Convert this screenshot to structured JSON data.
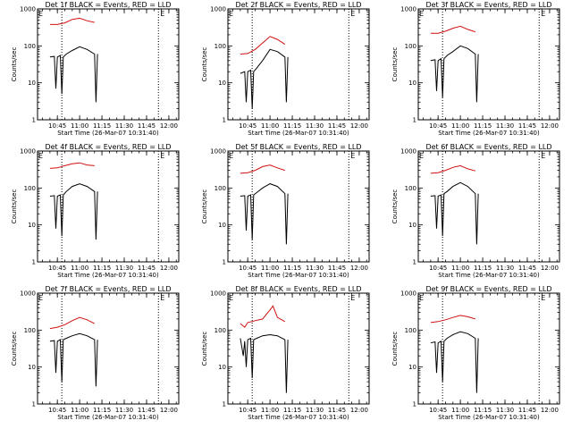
{
  "colors": {
    "events": "#000000",
    "lld": "#d01010",
    "background": "#ffffff"
  },
  "chart_data": [
    {
      "type": "line",
      "title": "Det 1f BLACK = Events, RED = LLD",
      "ylabel": "Counts/sec",
      "xlabel": "Start Time (26-Mar-07 10:31:40)",
      "y_scale": "log",
      "ylim": [
        1,
        1000
      ],
      "xlim": [
        "10:31:40",
        "12:06:40"
      ],
      "x_ticks": [
        "10:45",
        "11:00",
        "11:15",
        "11:30",
        "11:45",
        "12:00"
      ],
      "y_ticks": [
        "1",
        "10",
        "100",
        "1000"
      ],
      "markers": [
        {
          "label": "E",
          "time": "10:31:40"
        },
        {
          "label": "E",
          "time": "11:53"
        }
      ],
      "vlines": [
        "10:48",
        "11:53"
      ],
      "grid": false,
      "legend": "none",
      "series": [
        {
          "color": "#d01010",
          "x": [
            "10:40",
            "10:45",
            "10:50",
            "10:55",
            "11:00",
            "11:05",
            "11:10"
          ],
          "y": [
            380,
            380,
            420,
            520,
            560,
            480,
            430
          ]
        },
        {
          "color": "#000000",
          "x": [
            "10:40",
            "10:43",
            "10:44",
            "10:45",
            "10:47",
            "10:48",
            "10:49",
            "10:51",
            "10:55",
            "11:00",
            "11:05",
            "11:10",
            "11:11",
            "11:12"
          ],
          "y": [
            50,
            52,
            7,
            50,
            55,
            5,
            50,
            60,
            75,
            95,
            80,
            60,
            3,
            60
          ]
        }
      ]
    },
    {
      "type": "line",
      "title": "Det 2f BLACK = Events, RED = LLD",
      "ylabel": "Counts/sec",
      "xlabel": "Start Time (26-Mar-07 10:31:40)",
      "y_scale": "log",
      "ylim": [
        1,
        1000
      ],
      "xlim": [
        "10:31:40",
        "12:06:40"
      ],
      "x_ticks": [
        "10:45",
        "11:00",
        "11:15",
        "11:30",
        "11:45",
        "12:00"
      ],
      "y_ticks": [
        "1",
        "10",
        "100",
        "1000"
      ],
      "markers": [
        {
          "label": "E",
          "time": "10:31:40"
        },
        {
          "label": "E",
          "time": "11:53"
        }
      ],
      "vlines": [
        "10:48",
        "11:53"
      ],
      "grid": false,
      "legend": "none",
      "series": [
        {
          "color": "#d01010",
          "x": [
            "10:40",
            "10:45",
            "10:50",
            "10:55",
            "11:00",
            "11:05",
            "11:10"
          ],
          "y": [
            60,
            62,
            80,
            120,
            180,
            150,
            110
          ]
        },
        {
          "color": "#000000",
          "x": [
            "10:40",
            "10:43",
            "10:44",
            "10:45",
            "10:47",
            "10:48",
            "10:49",
            "10:51",
            "10:55",
            "11:00",
            "11:05",
            "11:10",
            "11:11",
            "11:12"
          ],
          "y": [
            18,
            20,
            3,
            20,
            22,
            2,
            20,
            25,
            40,
            80,
            70,
            50,
            3,
            50
          ]
        }
      ]
    },
    {
      "type": "line",
      "title": "Det 3f BLACK = Events, RED = LLD",
      "ylabel": "Counts/sec",
      "xlabel": "Start Time (26-Mar-07 10:31:40)",
      "y_scale": "log",
      "ylim": [
        1,
        1000
      ],
      "xlim": [
        "10:31:40",
        "12:06:40"
      ],
      "x_ticks": [
        "10:45",
        "11:00",
        "11:15",
        "11:30",
        "11:45",
        "12:00"
      ],
      "y_ticks": [
        "1",
        "10",
        "100",
        "1000"
      ],
      "markers": [
        {
          "label": "E",
          "time": "10:31:40"
        },
        {
          "label": "E",
          "time": "11:53"
        }
      ],
      "vlines": [
        "10:48",
        "11:53"
      ],
      "grid": false,
      "legend": "none",
      "series": [
        {
          "color": "#d01010",
          "x": [
            "10:40",
            "10:45",
            "10:50",
            "10:55",
            "11:00",
            "11:05",
            "11:10"
          ],
          "y": [
            220,
            220,
            250,
            300,
            340,
            280,
            240
          ]
        },
        {
          "color": "#000000",
          "x": [
            "10:40",
            "10:43",
            "10:44",
            "10:45",
            "10:47",
            "10:48",
            "10:49",
            "10:51",
            "10:55",
            "11:00",
            "11:05",
            "11:10",
            "11:11",
            "11:12"
          ],
          "y": [
            40,
            42,
            6,
            40,
            45,
            4,
            45,
            55,
            70,
            100,
            85,
            60,
            3,
            60
          ]
        }
      ]
    },
    {
      "type": "line",
      "title": "Det 4f BLACK = Events, RED = LLD",
      "ylabel": "Counts/sec",
      "xlabel": "Start Time (26-Mar-07 10:31:40)",
      "y_scale": "log",
      "ylim": [
        1,
        1000
      ],
      "xlim": [
        "10:31:40",
        "12:06:40"
      ],
      "x_ticks": [
        "10:45",
        "11:00",
        "11:15",
        "11:30",
        "11:45",
        "12:00"
      ],
      "y_ticks": [
        "1",
        "10",
        "100",
        "1000"
      ],
      "markers": [
        {
          "label": "E",
          "time": "10:31:40"
        },
        {
          "label": "E",
          "time": "11:53"
        }
      ],
      "vlines": [
        "10:48",
        "11:53"
      ],
      "grid": false,
      "legend": "none",
      "series": [
        {
          "color": "#d01010",
          "x": [
            "10:40",
            "10:45",
            "10:50",
            "10:55",
            "11:00",
            "11:05",
            "11:10"
          ],
          "y": [
            340,
            350,
            400,
            450,
            480,
            420,
            400
          ]
        },
        {
          "color": "#000000",
          "x": [
            "10:40",
            "10:43",
            "10:44",
            "10:45",
            "10:47",
            "10:48",
            "10:49",
            "10:51",
            "10:55",
            "11:00",
            "11:05",
            "11:10",
            "11:11",
            "11:12"
          ],
          "y": [
            60,
            62,
            8,
            60,
            65,
            5,
            65,
            80,
            110,
            130,
            110,
            80,
            4,
            80
          ]
        }
      ]
    },
    {
      "type": "line",
      "title": "Det 5f BLACK = Events, RED = LLD",
      "ylabel": "Counts/sec",
      "xlabel": "Start Time (26-Mar-07 10:31:40)",
      "y_scale": "log",
      "ylim": [
        1,
        1000
      ],
      "xlim": [
        "10:31:40",
        "12:06:40"
      ],
      "x_ticks": [
        "10:45",
        "11:00",
        "11:15",
        "11:30",
        "11:45",
        "12:00"
      ],
      "y_ticks": [
        "1",
        "10",
        "100",
        "1000"
      ],
      "markers": [
        {
          "label": "E",
          "time": "10:31:40"
        },
        {
          "label": "E",
          "time": "11:53"
        }
      ],
      "vlines": [
        "10:48",
        "11:53"
      ],
      "grid": false,
      "legend": "none",
      "series": [
        {
          "color": "#d01010",
          "x": [
            "10:40",
            "10:45",
            "10:50",
            "10:55",
            "11:00",
            "11:05",
            "11:10"
          ],
          "y": [
            250,
            260,
            300,
            380,
            420,
            350,
            300
          ]
        },
        {
          "color": "#000000",
          "x": [
            "10:40",
            "10:43",
            "10:44",
            "10:45",
            "10:47",
            "10:48",
            "10:49",
            "10:51",
            "10:55",
            "11:00",
            "11:05",
            "11:10",
            "11:11",
            "11:12"
          ],
          "y": [
            60,
            62,
            7,
            60,
            65,
            4,
            65,
            75,
            100,
            130,
            110,
            70,
            3,
            70
          ]
        }
      ]
    },
    {
      "type": "line",
      "title": "Det 6f BLACK = Events, RED = LLD",
      "ylabel": "Counts/sec",
      "xlabel": "Start Time (26-Mar-07 10:31:40)",
      "y_scale": "log",
      "ylim": [
        1,
        1000
      ],
      "xlim": [
        "10:31:40",
        "12:06:40"
      ],
      "x_ticks": [
        "10:45",
        "11:00",
        "11:15",
        "11:30",
        "11:45",
        "12:00"
      ],
      "y_ticks": [
        "1",
        "10",
        "100",
        "1000"
      ],
      "markers": [
        {
          "label": "E",
          "time": "10:31:40"
        },
        {
          "label": "E",
          "time": "11:53"
        }
      ],
      "vlines": [
        "10:48",
        "11:53"
      ],
      "grid": false,
      "legend": "none",
      "series": [
        {
          "color": "#d01010",
          "x": [
            "10:40",
            "10:45",
            "10:50",
            "10:55",
            "11:00",
            "11:05",
            "11:10"
          ],
          "y": [
            250,
            260,
            300,
            360,
            400,
            330,
            290
          ]
        },
        {
          "color": "#000000",
          "x": [
            "10:40",
            "10:43",
            "10:44",
            "10:45",
            "10:47",
            "10:48",
            "10:49",
            "10:51",
            "10:55",
            "11:00",
            "11:05",
            "11:10",
            "11:11",
            "11:12"
          ],
          "y": [
            60,
            62,
            8,
            60,
            65,
            5,
            70,
            80,
            110,
            140,
            110,
            70,
            3,
            70
          ]
        }
      ]
    },
    {
      "type": "line",
      "title": "Det 7f BLACK = Events, RED = LLD",
      "ylabel": "Counts/sec",
      "xlabel": "Start Time (26-Mar-07 10:31:40)",
      "y_scale": "log",
      "ylim": [
        1,
        1000
      ],
      "xlim": [
        "10:31:40",
        "12:06:40"
      ],
      "x_ticks": [
        "10:45",
        "11:00",
        "11:15",
        "11:30",
        "11:45",
        "12:00"
      ],
      "y_ticks": [
        "1",
        "10",
        "100",
        "1000"
      ],
      "markers": [
        {
          "label": "E",
          "time": "10:31:40"
        },
        {
          "label": "E",
          "time": "11:53"
        }
      ],
      "vlines": [
        "10:48",
        "11:53"
      ],
      "grid": false,
      "legend": "none",
      "series": [
        {
          "color": "#d01010",
          "x": [
            "10:40",
            "10:45",
            "10:50",
            "10:55",
            "11:00",
            "11:05",
            "11:10"
          ],
          "y": [
            110,
            120,
            140,
            180,
            220,
            190,
            150
          ]
        },
        {
          "color": "#000000",
          "x": [
            "10:40",
            "10:43",
            "10:44",
            "10:45",
            "10:47",
            "10:48",
            "10:49",
            "10:51",
            "10:55",
            "11:00",
            "11:05",
            "11:10",
            "11:11",
            "11:12"
          ],
          "y": [
            50,
            52,
            7,
            50,
            55,
            4,
            55,
            60,
            70,
            80,
            70,
            55,
            3,
            55
          ]
        }
      ]
    },
    {
      "type": "line",
      "title": "Det 8f BLACK = Events, RED = LLD",
      "ylabel": "Counts/sec",
      "xlabel": "Start Time (26-Mar-07 10:31:40)",
      "y_scale": "log",
      "ylim": [
        1,
        1000
      ],
      "xlim": [
        "10:31:40",
        "12:06:40"
      ],
      "x_ticks": [
        "10:45",
        "11:00",
        "11:15",
        "11:30",
        "11:45",
        "12:00"
      ],
      "y_ticks": [
        "1",
        "10",
        "100",
        "1000"
      ],
      "markers": [
        {
          "label": "E",
          "time": "10:31:40"
        },
        {
          "label": "E",
          "time": "11:53"
        }
      ],
      "vlines": [
        "10:48",
        "11:53"
      ],
      "grid": false,
      "legend": "none",
      "series": [
        {
          "color": "#d01010",
          "x": [
            "10:40",
            "10:43",
            "10:45",
            "10:50",
            "10:55",
            "11:00",
            "11:02",
            "11:05",
            "11:10"
          ],
          "y": [
            150,
            120,
            160,
            180,
            200,
            350,
            450,
            220,
            170
          ]
        },
        {
          "color": "#000000",
          "x": [
            "10:40",
            "10:42",
            "10:43",
            "10:44",
            "10:45",
            "10:47",
            "10:48",
            "10:49",
            "10:51",
            "10:55",
            "11:00",
            "11:05",
            "11:10",
            "11:11",
            "11:12"
          ],
          "y": [
            60,
            20,
            50,
            10,
            55,
            60,
            5,
            55,
            60,
            70,
            75,
            70,
            55,
            2,
            55
          ]
        }
      ]
    },
    {
      "type": "line",
      "title": "Det 9f BLACK = Events, RED = LLD",
      "ylabel": "Counts/sec",
      "xlabel": "Start Time (26-Mar-07 10:31:40)",
      "y_scale": "log",
      "ylim": [
        1,
        1000
      ],
      "xlim": [
        "10:31:40",
        "12:06:40"
      ],
      "x_ticks": [
        "10:45",
        "11:00",
        "11:15",
        "11:30",
        "11:45",
        "12:00"
      ],
      "y_ticks": [
        "1",
        "10",
        "100",
        "1000"
      ],
      "markers": [
        {
          "label": "E",
          "time": "10:31:40"
        },
        {
          "label": "E",
          "time": "11:53"
        }
      ],
      "vlines": [
        "10:48",
        "11:53"
      ],
      "grid": false,
      "legend": "none",
      "series": [
        {
          "color": "#d01010",
          "x": [
            "10:40",
            "10:45",
            "10:50",
            "10:55",
            "11:00",
            "11:05",
            "11:10"
          ],
          "y": [
            160,
            170,
            190,
            220,
            250,
            230,
            200
          ]
        },
        {
          "color": "#000000",
          "x": [
            "10:40",
            "10:43",
            "10:44",
            "10:45",
            "10:47",
            "10:48",
            "10:49",
            "10:51",
            "10:55",
            "11:00",
            "11:05",
            "11:10",
            "11:11",
            "11:12"
          ],
          "y": [
            45,
            48,
            7,
            45,
            50,
            4,
            50,
            60,
            75,
            90,
            80,
            60,
            2,
            60
          ]
        }
      ]
    }
  ]
}
